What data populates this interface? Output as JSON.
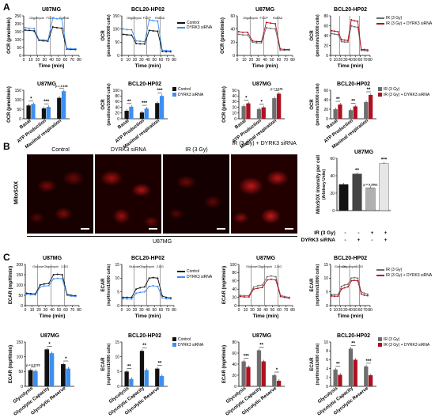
{
  "panels": {
    "A": "A",
    "B": "B",
    "C": "C"
  },
  "colors": {
    "control": "#111111",
    "dyrk3": "#3d8ef2",
    "ir": "#6e6e6e",
    "ir_dyrk3": "#b01020"
  },
  "legends": {
    "ctrl_dyrk": [
      "Control",
      "DYRK3 siRNA"
    ],
    "ir": [
      "IR (3 Gy)",
      "IR (3 Gy) + DYRK3 siRNA"
    ]
  },
  "sig": {
    "ocr_u87_ctrl": [
      "*",
      "***",
      "p = 0.106"
    ],
    "ocr_bcl_ctrl": [
      "**",
      "***",
      "***"
    ],
    "ocr_u87_ir": [
      "*",
      "*",
      "p = 0.101"
    ],
    "ocr_bcl_ir": [
      "**",
      "**",
      "**"
    ],
    "ecar_u87_ctrl": [
      "p = 0.2729",
      "*",
      "*"
    ],
    "ecar_bcl_ctrl": [
      "**",
      "**",
      "**"
    ],
    "ecar_u87_ir": [
      "***",
      "**",
      "*"
    ],
    "ecar_bcl_ir": [
      "**",
      "**",
      "***"
    ],
    "mito": [
      "",
      "**",
      "p = 0.2561",
      "***"
    ]
  },
  "microscopy": {
    "labels": [
      "Control",
      "DYRK3 siRNA",
      "IR (3 Gy)",
      "IR (3 Gy) + DYRK3 siRNA"
    ],
    "row_label": "MitoSOX",
    "bottom_label": "U87MG"
  },
  "mito_chart": {
    "title": "U87MG",
    "ylabel": "MitoSOX intensity per cell (Arbitrary Units)",
    "yticks": [
      "0",
      "20",
      "40",
      "60"
    ],
    "rows": [
      {
        "label": "IR (3 Gy)",
        "values": [
          "-",
          "-",
          "+",
          "+"
        ]
      },
      {
        "label": "DYRK3 siRNA",
        "values": [
          "-",
          "+",
          "-",
          "+"
        ]
      }
    ]
  },
  "chart_data": [
    {
      "id": "A-line-u87-ctrl",
      "type": "line",
      "title": "U87MG",
      "xlabel": "Time (min)",
      "ylabel": "OCR (pmol/min)",
      "annotations": [
        "Oligomycin",
        "FCCP",
        "Rot/AA"
      ],
      "xticks": [
        0,
        10,
        20,
        30,
        40,
        50,
        60,
        70,
        80
      ],
      "yticks": [
        0,
        50,
        100,
        150,
        200,
        250
      ],
      "xlim": [
        0,
        80
      ],
      "ylim": [
        0,
        250
      ],
      "x": [
        2,
        8,
        15,
        22,
        28,
        35,
        42,
        48,
        55,
        62,
        68,
        75
      ],
      "series": [
        {
          "name": "Control",
          "values": [
            160,
            158,
            155,
            95,
            92,
            90,
            180,
            175,
            172,
            40,
            38,
            37
          ]
        },
        {
          "name": "DYRK3 siRNA",
          "values": [
            175,
            172,
            170,
            100,
            98,
            96,
            235,
            232,
            230,
            45,
            43,
            42
          ]
        }
      ]
    },
    {
      "id": "A-line-bcl-ctrl",
      "type": "line",
      "title": "BCL20-HP02",
      "xlabel": "Time (min)",
      "ylabel": "OCR (pmol/min/10000 cells)",
      "annotations": [
        "Oligomycin",
        "FCCP",
        "Rot/AA"
      ],
      "xticks": [
        0,
        10,
        20,
        30,
        40,
        50,
        60,
        70,
        80
      ],
      "yticks": [
        0,
        50,
        100,
        150
      ],
      "xlim": [
        0,
        80
      ],
      "ylim": [
        0,
        150
      ],
      "x": [
        2,
        8,
        15,
        22,
        28,
        35,
        42,
        48,
        55,
        62,
        68,
        75
      ],
      "series": [
        {
          "name": "Control",
          "values": [
            80,
            78,
            77,
            45,
            44,
            43,
            95,
            93,
            92,
            15,
            14,
            14
          ]
        },
        {
          "name": "DYRK3 siRNA",
          "values": [
            100,
            98,
            97,
            55,
            54,
            52,
            135,
            132,
            130,
            20,
            19,
            18
          ]
        }
      ]
    },
    {
      "id": "A-line-u87-ir",
      "type": "line",
      "title": "U87MG",
      "xlabel": "Time (min)",
      "ylabel": "OCR (pmol/min)",
      "annotations": [
        "Oligomycin",
        "FCCP",
        "Rot/AA"
      ],
      "xticks": [
        0,
        10,
        20,
        30,
        40,
        50,
        60,
        70,
        80
      ],
      "yticks": [
        0,
        20,
        40,
        60
      ],
      "xlim": [
        0,
        80
      ],
      "ylim": [
        0,
        60
      ],
      "x": [
        2,
        8,
        15,
        22,
        28,
        35,
        42,
        48,
        55,
        62,
        68,
        75
      ],
      "series": [
        {
          "name": "IR (3 Gy)",
          "values": [
            32,
            31,
            31,
            20,
            19,
            19,
            42,
            41,
            40,
            8,
            8,
            8
          ]
        },
        {
          "name": "IR (3 Gy) + DYRK3 siRNA",
          "values": [
            36,
            35,
            35,
            22,
            21,
            21,
            50,
            49,
            48,
            10,
            9,
            9
          ]
        }
      ]
    },
    {
      "id": "A-line-bcl-ir",
      "type": "line",
      "title": "BCL20-HP02",
      "xlabel": "Time (min)",
      "ylabel": "OCR (pmol/min/10000 cells)",
      "annotations": [],
      "xticks": [
        0,
        10,
        20,
        30,
        40,
        50,
        60,
        70,
        80
      ],
      "yticks": [
        0,
        20,
        40,
        60,
        80
      ],
      "xlim": [
        0,
        80
      ],
      "ylim": [
        0,
        80
      ],
      "x": [
        2,
        8,
        15,
        22,
        28,
        35,
        42,
        48,
        55,
        62,
        68,
        75
      ],
      "series": [
        {
          "name": "IR (3 Gy)",
          "values": [
            44,
            43,
            42,
            28,
            27,
            27,
            60,
            58,
            57,
            10,
            10,
            9
          ]
        },
        {
          "name": "IR (3 Gy) + DYRK3 siRNA",
          "values": [
            50,
            49,
            48,
            32,
            31,
            30,
            72,
            70,
            69,
            12,
            12,
            11
          ]
        }
      ]
    },
    {
      "id": "A-bar-u87-ctrl",
      "type": "bar",
      "title": "U87MG",
      "ylabel": "OCR (pmol/min)",
      "categories": [
        "Basal",
        "ATP Production",
        "Maximal respiration"
      ],
      "yticks": [
        0,
        50,
        100,
        150
      ],
      "ylim": [
        0,
        150
      ],
      "series": [
        {
          "name": "Control",
          "values": [
            70,
            55,
            110
          ]
        },
        {
          "name": "DYRK3 siRNA",
          "values": [
            78,
            62,
            145
          ]
        }
      ]
    },
    {
      "id": "A-bar-bcl-ctrl",
      "type": "bar",
      "title": "BCL20-HP02",
      "ylabel": "OCR (pmol/min/10000 cells)",
      "categories": [
        "Basal",
        "ATP Production",
        "Maximal respiration"
      ],
      "yticks": [
        0,
        20,
        40,
        60,
        80,
        100
      ],
      "ylim": [
        0,
        100
      ],
      "series": [
        {
          "name": "Control",
          "values": [
            28,
            22,
            55
          ]
        },
        {
          "name": "DYRK3 siRNA",
          "values": [
            42,
            36,
            80
          ]
        }
      ]
    },
    {
      "id": "A-bar-u87-ir",
      "type": "bar",
      "title": "U87MG",
      "ylabel": "OCR (pmol/min)",
      "categories": [
        "Basal",
        "ATP Production",
        "Maximal respiration"
      ],
      "yticks": [
        0,
        10,
        20,
        30,
        40,
        50
      ],
      "ylim": [
        0,
        50
      ],
      "series": [
        {
          "name": "IR (3 Gy)",
          "values": [
            22,
            17,
            36
          ]
        },
        {
          "name": "IR (3 Gy) + DYRK3 siRNA",
          "values": [
            27,
            20,
            44
          ]
        }
      ]
    },
    {
      "id": "A-bar-bcl-ir",
      "type": "bar",
      "title": "BCL20-HP02",
      "ylabel": "OCR (pmol/min/10000 cells)",
      "categories": [
        "Basal",
        "ATP Production",
        "Maximal respiration"
      ],
      "yticks": [
        0,
        20,
        40,
        60
      ],
      "ylim": [
        0,
        60
      ],
      "series": [
        {
          "name": "IR (3 Gy)",
          "values": [
            20,
            18,
            35
          ]
        },
        {
          "name": "IR (3 Gy) + DYRK3 siRNA",
          "values": [
            30,
            26,
            50
          ]
        }
      ]
    },
    {
      "id": "B-bar-mitosox",
      "type": "bar",
      "title": "U87MG",
      "ylabel": "MitoSOX intensity per cell (Arbitrary Units)",
      "categories": [
        "Control",
        "DYRK3 siRNA",
        "IR (3 Gy)",
        "IR (3 Gy) + DYRK3 siRNA"
      ],
      "yticks": [
        0,
        20,
        40,
        60
      ],
      "ylim": [
        0,
        60
      ],
      "values": [
        30,
        42,
        26,
        54
      ]
    },
    {
      "id": "C-line-u87-ctrl",
      "type": "line",
      "title": "U87MG",
      "xlabel": "Time (min)",
      "ylabel": "ECAR (mpH/min)",
      "annotations": [
        "Glucose",
        "Oligomycin",
        "2-DG"
      ],
      "xticks": [
        0,
        10,
        20,
        30,
        40,
        50,
        60,
        70,
        80
      ],
      "yticks": [
        0,
        50,
        100,
        150,
        200
      ],
      "xlim": [
        0,
        80
      ],
      "ylim": [
        0,
        200
      ],
      "x": [
        2,
        8,
        15,
        22,
        28,
        35,
        42,
        48,
        55,
        62,
        68,
        75
      ],
      "series": [
        {
          "name": "Control",
          "values": [
            60,
            58,
            57,
            100,
            105,
            108,
            150,
            152,
            150,
            55,
            50,
            48
          ]
        },
        {
          "name": "DYRK3 siRNA",
          "values": [
            55,
            53,
            52,
            90,
            95,
            97,
            130,
            132,
            130,
            50,
            46,
            44
          ]
        }
      ]
    },
    {
      "id": "C-line-bcl-ctrl",
      "type": "line",
      "title": "BCL20-HP02",
      "xlabel": "Time (min)",
      "ylabel": "ECAR (mpH/min/10000 cells)",
      "annotations": [
        "Glucose",
        "Oligomycin",
        "2-DG"
      ],
      "xticks": [
        0,
        10,
        20,
        30,
        40,
        50,
        60,
        70,
        80
      ],
      "yticks": [
        0,
        5,
        10,
        15
      ],
      "xlim": [
        0,
        80
      ],
      "ylim": [
        0,
        15
      ],
      "x": [
        2,
        8,
        15,
        22,
        28,
        35,
        42,
        48,
        55,
        62,
        68,
        75
      ],
      "series": [
        {
          "name": "Control",
          "values": [
            3,
            3,
            3,
            6,
            6.5,
            6.8,
            10,
            10.2,
            10,
            3.5,
            3,
            2.8
          ]
        },
        {
          "name": "DYRK3 siRNA",
          "values": [
            2.5,
            2.4,
            2.4,
            4.5,
            4.8,
            5,
            7,
            7.2,
            7,
            2.8,
            2.5,
            2.4
          ]
        }
      ]
    },
    {
      "id": "C-line-u87-ir",
      "type": "line",
      "title": "U87MG",
      "xlabel": "Time (min)",
      "ylabel": "ECAR (mpH/min)",
      "annotations": [
        "Glucose",
        "Oligomycin",
        "2-DG"
      ],
      "xticks": [
        0,
        10,
        20,
        30,
        40,
        50,
        60,
        70,
        80
      ],
      "yticks": [
        0,
        20,
        40,
        60,
        80,
        100
      ],
      "xlim": [
        0,
        80
      ],
      "ylim": [
        0,
        100
      ],
      "x": [
        2,
        8,
        15,
        22,
        28,
        35,
        42,
        48,
        55,
        62,
        68,
        75
      ],
      "series": [
        {
          "name": "IR (3 Gy)",
          "values": [
            25,
            24,
            24,
            45,
            48,
            50,
            70,
            72,
            70,
            25,
            22,
            20
          ]
        },
        {
          "name": "IR (3 Gy) + DYRK3 siRNA",
          "values": [
            22,
            21,
            21,
            40,
            42,
            44,
            62,
            64,
            62,
            22,
            20,
            18
          ]
        }
      ]
    },
    {
      "id": "C-line-bcl-ir",
      "type": "line",
      "title": "BCL20-HP02",
      "xlabel": "Time (min)",
      "ylabel": "ECAR (mpH/min/10000 cells)",
      "annotations": [
        "Glucose",
        "Oligomycin",
        "2-DG"
      ],
      "xticks": [
        0,
        10,
        20,
        30,
        40,
        50,
        60,
        70,
        80
      ],
      "yticks": [
        0,
        5,
        10,
        15
      ],
      "xlim": [
        0,
        80
      ],
      "ylim": [
        0,
        15
      ],
      "x": [
        2,
        8,
        15,
        22,
        28,
        35,
        42,
        48,
        55,
        62,
        68,
        75
      ],
      "series": [
        {
          "name": "IR (3 Gy)",
          "values": [
            4,
            4,
            4,
            7,
            7.5,
            7.8,
            10,
            10.2,
            10,
            5,
            4.5,
            4.2
          ]
        },
        {
          "name": "IR (3 Gy) + DYRK3 siRNA",
          "values": [
            3.5,
            3.4,
            3.4,
            6,
            6.5,
            6.8,
            9,
            9.2,
            9,
            4.2,
            3.8,
            3.6
          ]
        }
      ]
    },
    {
      "id": "C-bar-u87-ctrl",
      "type": "bar",
      "title": "U87MG",
      "ylabel": "ECAR (mpH/min)",
      "categories": [
        "Glycolysis",
        "Glycolytic Capacity",
        "Glycolytic Reserve"
      ],
      "yticks": [
        0,
        50,
        100,
        150
      ],
      "ylim": [
        0,
        150
      ],
      "series": [
        {
          "name": "Control",
          "values": [
            55,
            125,
            75
          ]
        },
        {
          "name": "DYRK3 siRNA",
          "values": [
            52,
            112,
            60
          ]
        }
      ]
    },
    {
      "id": "C-bar-bcl-ctrl",
      "type": "bar",
      "title": "BCL20-HP02",
      "ylabel": "ECAR (mpH/min/10000 cells)",
      "categories": [
        "Glycolysis",
        "Glycolytic Capacity",
        "Glycolytic Reserve"
      ],
      "yticks": [
        0,
        5,
        10,
        15
      ],
      "ylim": [
        0,
        15
      ],
      "series": [
        {
          "name": "Control",
          "values": [
            5,
            12,
            6
          ]
        },
        {
          "name": "DYRK3 siRNA",
          "values": [
            2.5,
            5.5,
            3.5
          ]
        }
      ]
    },
    {
      "id": "C-bar-u87-ir",
      "type": "bar",
      "title": "U87MG",
      "ylabel": "ECAR (mpH/min)",
      "categories": [
        "Glycolysis",
        "Glycolytic Capacity",
        "Glycolytic Reserve"
      ],
      "yticks": [
        0,
        20,
        40,
        60,
        80
      ],
      "ylim": [
        0,
        80
      ],
      "series": [
        {
          "name": "IR (3 Gy)",
          "values": [
            45,
            65,
            20
          ]
        },
        {
          "name": "IR (3 Gy) + DYRK3 siRNA",
          "values": [
            35,
            45,
            10
          ]
        }
      ]
    },
    {
      "id": "C-bar-bcl-ir",
      "type": "bar",
      "title": "BCL20-HP02",
      "ylabel": "ECAR (mpH/min/10000 cells)",
      "categories": [
        "Glycolysis",
        "Glycolytic Capacity",
        "Glycolytic Reserve"
      ],
      "yticks": [
        0,
        2,
        4,
        6,
        8,
        10
      ],
      "ylim": [
        0,
        10
      ],
      "series": [
        {
          "name": "IR (3 Gy)",
          "values": [
            3.8,
            8.5,
            4.5
          ]
        },
        {
          "name": "IR (3 Gy) + DYRK3 siRNA",
          "values": [
            2.6,
            6,
            2.5
          ]
        }
      ]
    }
  ]
}
